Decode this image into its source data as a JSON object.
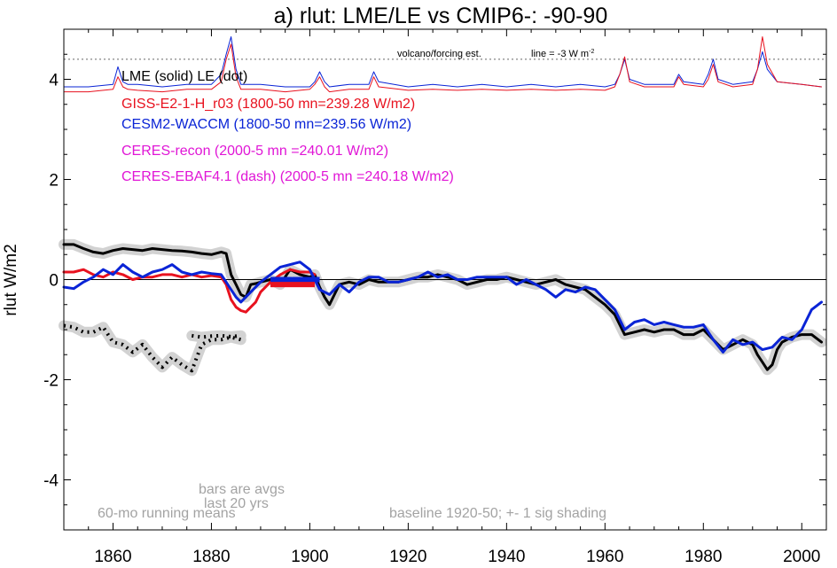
{
  "chart_data": {
    "type": "line",
    "title": "a) rlut: LME/LE vs CMIP6-: -90-90",
    "ylabel": "rlut W/m2",
    "xlabel": "",
    "xlim": [
      1850,
      2005
    ],
    "ylim": [
      -5,
      5
    ],
    "x_ticks": [
      1860,
      1880,
      1900,
      1920,
      1940,
      1960,
      1980,
      2000
    ],
    "y_ticks": [
      4,
      2,
      0,
      -2,
      -4
    ],
    "y_tick_labels": [
      "4",
      "2",
      "0",
      "-2",
      "-4"
    ],
    "grid": false,
    "zero_line": true,
    "colors": {
      "lme": "#000000",
      "giss": "#e8121f",
      "cesm": "#0a24d6",
      "ceres": "#e016d6",
      "shading": "#d2d2d2",
      "note": "#a3a3a3"
    },
    "legend": [
      {
        "label": "LME (solid)   LE (dot)",
        "color": "#000000"
      },
      {
        "label": "GISS-E2-1-H_r03 (1800-50 mn=239.28 W/m2)",
        "color": "#e8121f"
      },
      {
        "label": "CESM2-WACCM (1800-50 mn=239.56 W/m2)",
        "color": "#0a24d6"
      },
      {
        "label": "CERES-recon (2000-5 mn =240.01 W/m2)",
        "color": "#e016d6"
      },
      {
        "label": "CERES-EBAF4.1 (dash) (2000-5 mn =240.18 W/m2)",
        "color": "#e016d6"
      }
    ],
    "annotations": {
      "volcano": "volcano/forcing est.",
      "line": "line = -3 W m",
      "line_sup": "-2",
      "bars1": "bars are avgs",
      "bars2": "last 20 yrs",
      "running": "60-mo running means",
      "baseline": "baseline 1920-50; +- 1 sig shading"
    },
    "volcano_reference_y": 4.4,
    "series": [
      {
        "name": "LME (solid)",
        "key": "lme",
        "style": "thick",
        "x": [
          1850,
          1852,
          1854,
          1856,
          1858,
          1860,
          1862,
          1864,
          1866,
          1868,
          1870,
          1872,
          1874,
          1876,
          1878,
          1880,
          1882,
          1883,
          1884,
          1885,
          1886,
          1887,
          1888,
          1889,
          1890,
          1892,
          1894,
          1896,
          1898,
          1900,
          1901,
          1902,
          1903,
          1904,
          1905,
          1906,
          1908,
          1910,
          1912,
          1914,
          1916,
          1918,
          1920,
          1922,
          1924,
          1926,
          1928,
          1930,
          1932,
          1934,
          1936,
          1938,
          1940,
          1942,
          1944,
          1946,
          1948,
          1950,
          1952,
          1954,
          1956,
          1958,
          1960,
          1962,
          1963,
          1964,
          1966,
          1968,
          1970,
          1972,
          1974,
          1976,
          1978,
          1980,
          1982,
          1984,
          1986,
          1988,
          1990,
          1991,
          1992,
          1993,
          1994,
          1995,
          1996,
          1998,
          2000,
          2002,
          2004
        ],
        "y": [
          0.7,
          0.7,
          0.62,
          0.55,
          0.52,
          0.58,
          0.62,
          0.6,
          0.58,
          0.62,
          0.6,
          0.58,
          0.57,
          0.55,
          0.52,
          0.5,
          0.55,
          0.52,
          0.1,
          -0.1,
          -0.3,
          -0.35,
          -0.1,
          -0.08,
          -0.05,
          0.0,
          -0.1,
          0.2,
          0.1,
          0.05,
          0.1,
          -0.15,
          -0.35,
          -0.5,
          -0.3,
          -0.1,
          -0.05,
          -0.1,
          0.0,
          -0.05,
          -0.05,
          -0.05,
          0.0,
          0.05,
          0.05,
          0.1,
          0.05,
          0.0,
          -0.1,
          -0.05,
          0.0,
          0.0,
          0.05,
          0.0,
          -0.05,
          -0.1,
          -0.05,
          0.0,
          -0.1,
          -0.15,
          -0.2,
          -0.35,
          -0.5,
          -0.7,
          -0.9,
          -1.1,
          -1.05,
          -1.0,
          -1.05,
          -1.0,
          -1.0,
          -1.1,
          -1.1,
          -1.0,
          -1.2,
          -1.4,
          -1.3,
          -1.2,
          -1.3,
          -1.5,
          -1.65,
          -1.8,
          -1.7,
          -1.4,
          -1.25,
          -1.15,
          -1.1,
          -1.1,
          -1.25
        ]
      },
      {
        "name": "LE (dot)",
        "key": "lme",
        "style": "dot",
        "x": [
          1850,
          1852,
          1854,
          1856,
          1858,
          1860,
          1862,
          1864,
          1866,
          1868,
          1870,
          1872,
          1874,
          1876,
          1878,
          1880,
          1882,
          1884,
          1886
        ],
        "y": [
          -0.92,
          -0.95,
          -1.05,
          -1.05,
          -0.95,
          -1.25,
          -1.3,
          -1.45,
          -1.3,
          -1.55,
          -1.75,
          -1.55,
          -1.7,
          -1.82,
          -1.3,
          -1.2,
          -1.2,
          -1.15,
          -1.2
        ]
      },
      {
        "name": "LE (dot) segment",
        "key": "lme",
        "style": "dot",
        "x": [
          1876,
          1878,
          1880,
          1882,
          1884,
          1886
        ],
        "y": [
          -1.12,
          -1.15,
          -1.13,
          -1.12,
          -1.14,
          -1.12
        ]
      },
      {
        "name": "GISS-E2-1-H_r03",
        "key": "giss",
        "style": "thick",
        "x": [
          1850,
          1852,
          1854,
          1856,
          1858,
          1860,
          1862,
          1864,
          1866,
          1868,
          1870,
          1872,
          1874,
          1876,
          1878,
          1880,
          1882,
          1883,
          1884,
          1885,
          1886,
          1887,
          1888,
          1889,
          1890,
          1892,
          1894,
          1896,
          1898,
          1900,
          1901
        ],
        "y": [
          0.15,
          0.15,
          0.2,
          0.1,
          0.05,
          0.15,
          0.1,
          0.0,
          0.05,
          0.05,
          0.1,
          0.1,
          0.05,
          0.1,
          0.05,
          0.08,
          0.05,
          -0.1,
          -0.4,
          -0.55,
          -0.62,
          -0.65,
          -0.55,
          -0.45,
          -0.25,
          -0.05,
          0.1,
          0.2,
          0.15,
          0.15,
          0.1
        ]
      },
      {
        "name": "CESM2-WACCM",
        "key": "cesm",
        "style": "thick",
        "x": [
          1850,
          1852,
          1854,
          1856,
          1858,
          1860,
          1862,
          1864,
          1866,
          1868,
          1870,
          1872,
          1874,
          1876,
          1878,
          1880,
          1882,
          1883,
          1884,
          1885,
          1886,
          1888,
          1890,
          1892,
          1894,
          1896,
          1898,
          1900,
          1902,
          1904,
          1906,
          1908,
          1910,
          1912,
          1914,
          1916,
          1918,
          1920,
          1922,
          1924,
          1926,
          1928,
          1930,
          1932,
          1934,
          1936,
          1938,
          1940,
          1942,
          1944,
          1946,
          1948,
          1950,
          1952,
          1954,
          1956,
          1958,
          1960,
          1962,
          1963,
          1964,
          1966,
          1968,
          1970,
          1972,
          1974,
          1976,
          1978,
          1980,
          1982,
          1984,
          1986,
          1988,
          1990,
          1992,
          1994,
          1996,
          1998,
          2000,
          2002,
          2004
        ],
        "y": [
          -0.15,
          -0.18,
          -0.05,
          0.05,
          0.2,
          0.1,
          0.3,
          0.15,
          0.05,
          0.15,
          0.2,
          0.3,
          0.15,
          0.1,
          0.15,
          0.12,
          0.1,
          -0.05,
          -0.2,
          -0.35,
          -0.45,
          -0.25,
          -0.05,
          0.1,
          0.25,
          0.3,
          0.35,
          0.2,
          -0.2,
          -0.3,
          -0.1,
          -0.25,
          -0.05,
          0.05,
          0.05,
          -0.05,
          -0.05,
          0.0,
          0.05,
          0.15,
          0.05,
          0.1,
          0.0,
          0.0,
          0.05,
          0.05,
          0.05,
          0.05,
          -0.1,
          0.0,
          -0.1,
          -0.2,
          -0.35,
          -0.2,
          -0.25,
          -0.15,
          -0.2,
          -0.4,
          -0.6,
          -0.8,
          -1.0,
          -0.85,
          -0.8,
          -0.9,
          -0.85,
          -0.9,
          -0.95,
          -0.95,
          -0.9,
          -1.2,
          -1.45,
          -1.2,
          -1.3,
          -1.25,
          -1.4,
          -1.35,
          -1.15,
          -1.2,
          -1.0,
          -0.6,
          -0.45
        ]
      },
      {
        "name": "CESM2-WACCM forcing",
        "key": "cesm",
        "style": "thin",
        "x": [
          1850,
          1855,
          1860,
          1861,
          1862,
          1863,
          1865,
          1870,
          1875,
          1880,
          1882,
          1883,
          1884,
          1885,
          1886,
          1890,
          1895,
          1900,
          1901,
          1902,
          1903,
          1904,
          1908,
          1912,
          1913,
          1914,
          1920,
          1925,
          1930,
          1935,
          1940,
          1945,
          1950,
          1955,
          1960,
          1962,
          1963,
          1964,
          1965,
          1968,
          1974,
          1975,
          1976,
          1980,
          1981,
          1982,
          1983,
          1986,
          1990,
          1991,
          1992,
          1993,
          1995,
          2000,
          2004
        ],
        "y": [
          3.85,
          3.85,
          3.9,
          4.25,
          3.95,
          3.9,
          3.9,
          3.85,
          3.9,
          3.9,
          4.1,
          4.5,
          4.85,
          4.2,
          3.9,
          3.9,
          3.85,
          3.85,
          3.95,
          4.15,
          3.95,
          3.85,
          3.9,
          3.9,
          4.15,
          3.95,
          3.85,
          3.9,
          3.85,
          3.9,
          3.85,
          3.9,
          3.85,
          3.9,
          3.85,
          3.9,
          4.1,
          4.4,
          4.0,
          3.9,
          3.9,
          4.1,
          3.95,
          3.9,
          4.1,
          4.4,
          4.0,
          3.9,
          3.95,
          4.2,
          4.55,
          4.2,
          3.95,
          3.9,
          3.85
        ]
      },
      {
        "name": "GISS-E2-1-H_r03 forcing",
        "key": "giss",
        "style": "thin",
        "x": [
          1850,
          1855,
          1860,
          1861,
          1862,
          1863,
          1865,
          1870,
          1875,
          1880,
          1882,
          1883,
          1884,
          1885,
          1886,
          1890,
          1895,
          1900,
          1901,
          1902,
          1903,
          1904,
          1908,
          1912,
          1913,
          1914,
          1920,
          1925,
          1930,
          1935,
          1940,
          1945,
          1950,
          1955,
          1960,
          1962,
          1963,
          1964,
          1965,
          1968,
          1974,
          1975,
          1976,
          1980,
          1981,
          1982,
          1983,
          1986,
          1990,
          1991,
          1992,
          1993,
          1995,
          2000,
          2004
        ],
        "y": [
          3.75,
          3.75,
          3.8,
          4.05,
          3.85,
          3.8,
          3.78,
          3.75,
          3.8,
          3.8,
          3.95,
          4.4,
          4.7,
          4.05,
          3.8,
          3.8,
          3.75,
          3.8,
          3.9,
          4.05,
          3.85,
          3.75,
          3.8,
          3.8,
          4.05,
          3.85,
          3.78,
          3.8,
          3.78,
          3.8,
          3.78,
          3.8,
          3.78,
          3.8,
          3.78,
          3.85,
          4.1,
          4.45,
          3.95,
          3.85,
          3.85,
          4.05,
          3.9,
          3.85,
          4.0,
          4.3,
          3.95,
          3.85,
          3.9,
          4.2,
          4.85,
          4.3,
          3.95,
          3.9,
          3.85
        ]
      }
    ],
    "bars": [
      {
        "key": "cesm",
        "x": [
          1892,
          1902
        ],
        "y": 0.0
      },
      {
        "key": "giss",
        "x": [
          1892,
          1901
        ],
        "y": -0.1
      }
    ]
  }
}
